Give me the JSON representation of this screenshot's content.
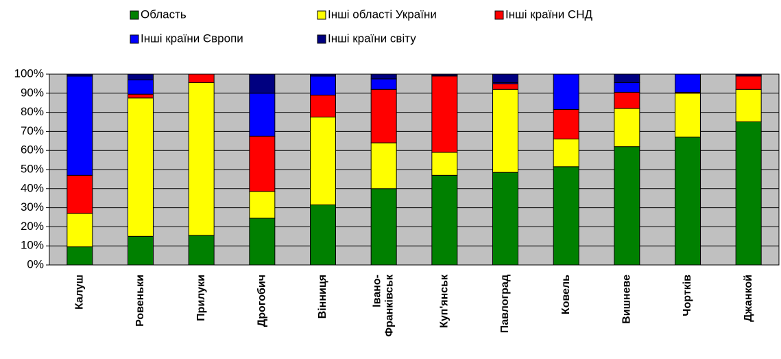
{
  "chart_data": {
    "type": "stacked_bar",
    "categories": [
      "Калуш",
      "Ровеньки",
      "Прилуки",
      "Дрогобич",
      "Вінниця",
      "Івано-Франківськ",
      "Куп'янськ",
      "Павлоград",
      "Ковель",
      "Вишневе",
      "Чортків",
      "Джанкой"
    ],
    "series": [
      {
        "name": "Область",
        "color": "#008000",
        "values": [
          9.5,
          15,
          15.5,
          24.5,
          31.5,
          40,
          47,
          48.5,
          51.5,
          62,
          67,
          75
        ]
      },
      {
        "name": "Інші області України",
        "color": "#ffff00",
        "values": [
          17.5,
          72.5,
          80,
          14,
          46,
          24,
          12,
          43.5,
          14.5,
          20,
          23,
          17
        ]
      },
      {
        "name": "Інші країни СНД",
        "color": "#ff0000",
        "values": [
          20,
          2,
          4.5,
          29,
          11.5,
          28,
          40,
          3,
          15.5,
          8.5,
          0.5,
          7
        ]
      },
      {
        "name": "Інші країни Європи",
        "color": "#0000ff",
        "values": [
          52,
          7.5,
          0,
          22.5,
          10,
          5.5,
          0.5,
          0.5,
          18.5,
          5,
          9.5,
          0.5
        ]
      },
      {
        "name": "Інші країни світу",
        "color": "#000080",
        "values": [
          1,
          3,
          0,
          10,
          1,
          2.5,
          0.5,
          4.5,
          0,
          4.5,
          0,
          0.5
        ]
      }
    ],
    "ylim": [
      0,
      100
    ],
    "yticks": [
      {
        "value": 0,
        "label": "0%"
      },
      {
        "value": 10,
        "label": "10%"
      },
      {
        "value": 20,
        "label": "20%"
      },
      {
        "value": 30,
        "label": "30%"
      },
      {
        "value": 40,
        "label": "40%"
      },
      {
        "value": 50,
        "label": "50%"
      },
      {
        "value": 60,
        "label": "60%"
      },
      {
        "value": 70,
        "label": "70%"
      },
      {
        "value": 80,
        "label": "80%"
      },
      {
        "value": 90,
        "label": "90%"
      },
      {
        "value": 100,
        "label": "100%"
      }
    ],
    "grid": true,
    "plot_background": "#c0c0c0"
  }
}
